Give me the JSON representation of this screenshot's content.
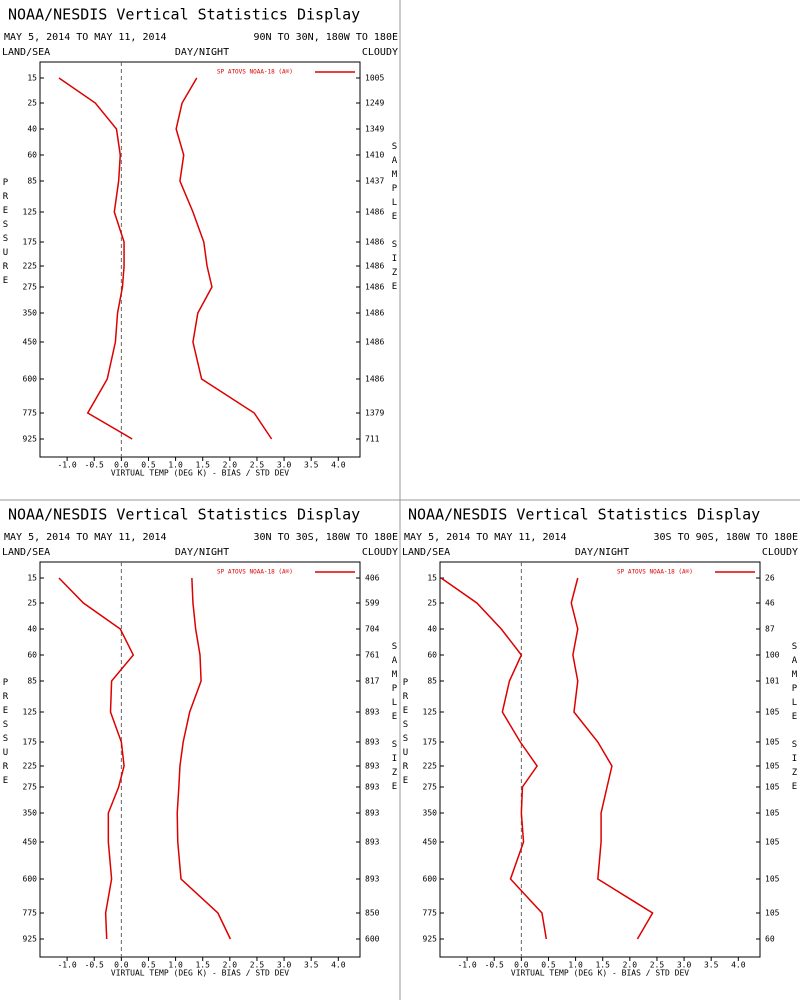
{
  "chart_data": [
    {
      "type": "profile",
      "title": "NOAA/NESDIS Vertical Statistics Display",
      "subtitle": "MAY 5, 2014 TO MAY 11, 2014",
      "region": "90N TO 30N, 180W TO 180E",
      "land_sea": "LAND/SEA",
      "day_night": "DAY/NIGHT",
      "cloudy": "CLOUDY",
      "y_label": "PRESSURE",
      "y2_label": "SAMPLE SIZE",
      "x_label": "VIRTUAL TEMP (DEG K) - BIAS / STD DEV",
      "categories": [
        15,
        25,
        40,
        60,
        85,
        125,
        175,
        225,
        275,
        350,
        450,
        600,
        775,
        925
      ],
      "series": [
        {
          "name": "SP ATOVS NOAA-18 (A®)",
          "color": "#dd0000",
          "bias": [
            -1.15,
            -0.48,
            -0.09,
            -0.02,
            -0.05,
            -0.13,
            0.05,
            0.05,
            0.02,
            -0.07,
            -0.11,
            -0.26,
            -0.62,
            0.2
          ],
          "std_dev": [
            1.39,
            1.12,
            1.01,
            1.15,
            1.08,
            1.32,
            1.52,
            1.58,
            1.67,
            1.41,
            1.32,
            1.48,
            2.45,
            2.77
          ]
        }
      ],
      "sample_size": [
        1005,
        1249,
        1349,
        1410,
        1437,
        1486,
        1486,
        1486,
        1486,
        1486,
        1486,
        1486,
        1379,
        711
      ],
      "xlim": [
        -1.5,
        4.4
      ],
      "xticks": [
        {
          "value": -1,
          "label": "-1.0"
        },
        -0.5,
        {
          "value": 0,
          "label": "0.0"
        },
        0.5,
        {
          "value": 1,
          "label": "1.0"
        },
        1.5,
        {
          "value": 2,
          "label": "2.0"
        },
        2.5,
        {
          "value": 3,
          "label": "3.0"
        },
        3.5,
        {
          "value": 4,
          "label": "4.0"
        }
      ]
    },
    {
      "type": "profile",
      "title": "NOAA/NESDIS Vertical Statistics Display",
      "subtitle": "MAY 5, 2014 TO MAY 11, 2014",
      "region": "30N TO 30S, 180W TO 180E",
      "land_sea": "LAND/SEA",
      "day_night": "DAY/NIGHT",
      "cloudy": "CLOUDY",
      "y_label": "PRESSURE",
      "y2_label": "SAMPLE SIZE",
      "x_label": "VIRTUAL TEMP (DEG K) - BIAS / STD DEV",
      "categories": [
        15,
        25,
        40,
        60,
        85,
        125,
        175,
        225,
        275,
        350,
        450,
        600,
        775,
        925
      ],
      "series": [
        {
          "name": "SP ATOVS NOAA-18 (A®)",
          "color": "#dd0000",
          "bias": [
            -1.15,
            -0.7,
            -0.02,
            0.22,
            -0.18,
            -0.2,
            0,
            0.05,
            -0.05,
            -0.24,
            -0.24,
            -0.18,
            -0.29,
            -0.27
          ],
          "std_dev": [
            1.3,
            1.32,
            1.37,
            1.45,
            1.47,
            1.26,
            1.14,
            1.08,
            1.06,
            1.03,
            1.04,
            1.1,
            1.78,
            2.01
          ]
        }
      ],
      "sample_size": [
        406,
        599,
        704,
        761,
        817,
        893,
        893,
        893,
        893,
        893,
        893,
        893,
        850,
        600
      ],
      "xlim": [
        -1.5,
        4.4
      ],
      "xticks": [
        {
          "value": -1,
          "label": "-1.0"
        },
        -0.5,
        {
          "value": 0,
          "label": "0.0"
        },
        0.5,
        {
          "value": 1,
          "label": "1.0"
        },
        1.5,
        {
          "value": 2,
          "label": "2.0"
        },
        2.5,
        {
          "value": 3,
          "label": "3.0"
        },
        3.5,
        {
          "value": 4,
          "label": "4.0"
        }
      ]
    },
    {
      "type": "profile",
      "title": "NOAA/NESDIS Vertical Statistics Display",
      "subtitle": "MAY 5, 2014 TO MAY 11, 2014",
      "region": "30S TO 90S, 180W TO 180E",
      "land_sea": "LAND/SEA",
      "day_night": "DAY/NIGHT",
      "cloudy": "CLOUDY",
      "y_label": "PRESSURE",
      "y2_label": "SAMPLE SIZE",
      "x_label": "VIRTUAL TEMP (DEG K) - BIAS / STD DEV",
      "categories": [
        15,
        25,
        40,
        60,
        85,
        125,
        175,
        225,
        275,
        350,
        450,
        600,
        775,
        925
      ],
      "series": [
        {
          "name": "SP ATOVS NOAA-18 (A®)",
          "color": "#dd0000",
          "bias": [
            -1.48,
            -0.82,
            -0.37,
            0,
            -0.22,
            -0.35,
            -0.02,
            0.29,
            0.02,
            0,
            0.04,
            -0.2,
            0.38,
            0.46
          ],
          "std_dev": [
            1.04,
            0.92,
            1.04,
            0.95,
            1.04,
            0.97,
            1.41,
            1.67,
            1.58,
            1.47,
            1.47,
            1.41,
            2.42,
            2.14
          ]
        }
      ],
      "sample_size": [
        26,
        46,
        87,
        100,
        101,
        105,
        105,
        105,
        105,
        105,
        105,
        105,
        105,
        60
      ],
      "xlim": [
        -1.5,
        4.4
      ],
      "xticks": [
        {
          "value": -1,
          "label": "-1.0"
        },
        -0.5,
        {
          "value": 0,
          "label": "0.0"
        },
        0.5,
        {
          "value": 1,
          "label": "1.0"
        },
        1.5,
        {
          "value": 2,
          "label": "2.0"
        },
        2.5,
        {
          "value": 3,
          "label": "3.0"
        },
        3.5,
        {
          "value": 4,
          "label": "4.0"
        }
      ]
    }
  ]
}
